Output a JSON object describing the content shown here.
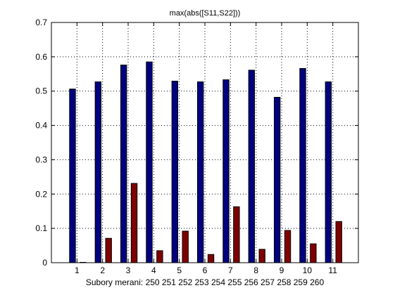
{
  "chart_data": {
    "type": "bar",
    "title": "max(abs([S11,S22]))",
    "xlabel": "Subory merani: 250 251 252 253 254 255 256 257 258 259 260",
    "ylabel": "",
    "categories": [
      "1",
      "2",
      "3",
      "4",
      "5",
      "6",
      "7",
      "8",
      "9",
      "10",
      "11"
    ],
    "ylim": [
      0,
      0.7
    ],
    "yticks": [
      "0",
      "0.1",
      "0.2",
      "0.3",
      "0.4",
      "0.5",
      "0.6",
      "0.7"
    ],
    "grid": true,
    "series": [
      {
        "color": "#000080",
        "values": [
          0.506,
          0.527,
          0.576,
          0.585,
          0.529,
          0.527,
          0.533,
          0.561,
          0.482,
          0.566,
          0.527
        ]
      },
      {
        "color": "#800000",
        "values": [
          0.001,
          0.071,
          0.231,
          0.035,
          0.092,
          0.024,
          0.163,
          0.039,
          0.094,
          0.055,
          0.12
        ]
      }
    ]
  }
}
